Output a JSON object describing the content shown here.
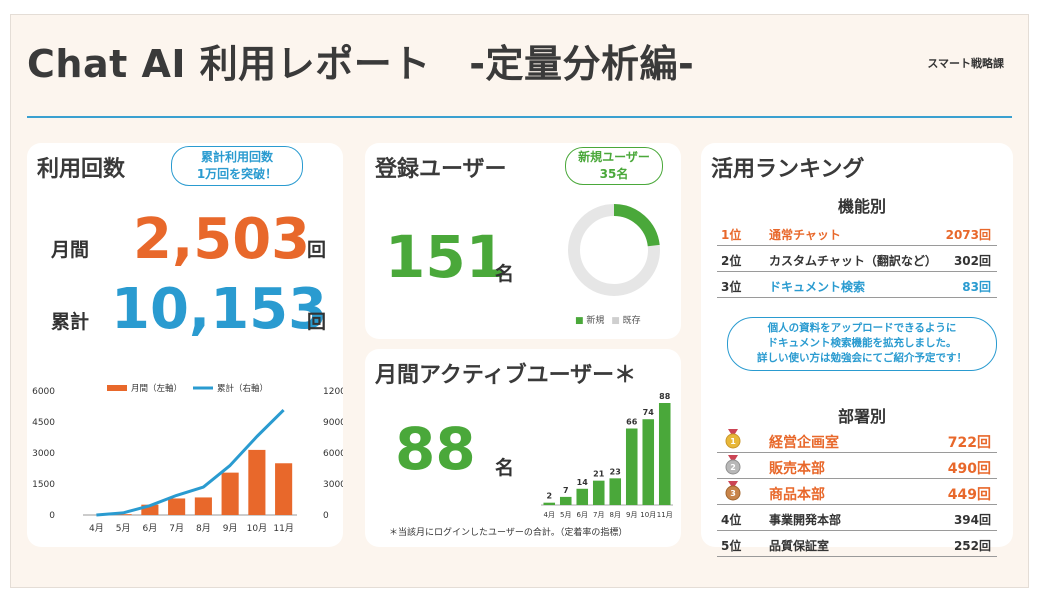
{
  "header": {
    "title": "Chat AI 利用レポート　-定量分析編-",
    "department": "スマート戦略課"
  },
  "usage": {
    "title": "利用回数",
    "bubble_line1": "累計利用回数",
    "bubble_line2": "1万回を突破！",
    "monthly_label": "月間",
    "monthly_value": "2,503",
    "total_label": "累計",
    "total_value": "10,153",
    "unit": "回"
  },
  "registered": {
    "title": "登録ユーザー",
    "bubble_line1": "新規ユーザー",
    "bubble_line2": "35名",
    "value": "151",
    "unit": "名",
    "legend_new": "新規",
    "legend_existing": "既存"
  },
  "active": {
    "title": "月間アクティブユーザー＊",
    "value": "88",
    "unit": "名",
    "note": "＊当該月にログインしたユーザーの合計。（定着率の指標）"
  },
  "ranking": {
    "title": "活用ランキング",
    "feature_heading": "機能別",
    "features": [
      {
        "pos": "1位",
        "name": "通常チャット",
        "count": "2073回"
      },
      {
        "pos": "2位",
        "name": "カスタムチャット（翻訳など）",
        "count": "302回"
      },
      {
        "pos": "3位",
        "name": "ドキュメント検索",
        "count": "83回"
      }
    ],
    "bubble_line1": "個人の資料をアップロードできるように",
    "bubble_line2": "ドキュメント検索機能を拡充しました。",
    "bubble_line3": "詳しい使い方は勉強会にてご紹介予定です！",
    "dept_heading": "部署別",
    "departments": [
      {
        "pos": "",
        "name": "経営企画室",
        "count": "722回"
      },
      {
        "pos": "",
        "name": "販売本部",
        "count": "490回"
      },
      {
        "pos": "",
        "name": "商品本部",
        "count": "449回"
      },
      {
        "pos": "4位",
        "name": "事業開発本部",
        "count": "394回"
      },
      {
        "pos": "5位",
        "name": "品質保証室",
        "count": "252回"
      }
    ]
  },
  "colors": {
    "orange": "#e8682b",
    "blue": "#2a9bd0",
    "green": "#4aa83a",
    "gold": "#e8b83a",
    "silver": "#b8b8b8",
    "bronze": "#c8844a"
  },
  "chart_data": [
    {
      "type": "bar",
      "categories": [
        "4月",
        "5月",
        "6月",
        "7月",
        "8月",
        "9月",
        "10月",
        "11月"
      ],
      "series": [
        {
          "name": "月間（左軸）",
          "type": "bar",
          "axis": "left",
          "values": [
            0,
            40,
            500,
            800,
            850,
            2050,
            3150,
            2503
          ]
        },
        {
          "name": "累計（右軸）",
          "type": "line",
          "axis": "right",
          "values": [
            0,
            200,
            900,
            1900,
            2700,
            4800,
            7600,
            10153
          ]
        }
      ],
      "left_ticks": [
        "6000",
        "4500",
        "3000",
        "1500",
        "0"
      ],
      "right_ticks": [
        "12000",
        "9000",
        "6000",
        "3000",
        "0"
      ],
      "ylim_left": [
        0,
        6000
      ],
      "ylim_right": [
        0,
        12000
      ],
      "legend": "top"
    },
    {
      "type": "bar",
      "categories": [
        "4月",
        "5月",
        "6月",
        "7月",
        "8月",
        "9月",
        "10月",
        "11月"
      ],
      "values": [
        2,
        7,
        14,
        21,
        23,
        66,
        74,
        88
      ],
      "ylim": [
        0,
        88
      ]
    },
    {
      "type": "pie",
      "categories": [
        "新規",
        "既存"
      ],
      "values": [
        35,
        116
      ]
    }
  ]
}
